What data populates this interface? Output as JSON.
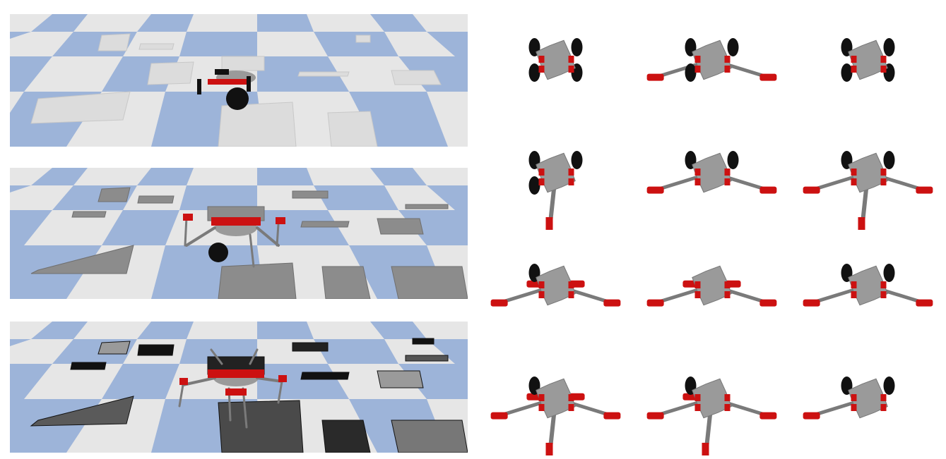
{
  "colors": {
    "floor_light": "#e6e6e6",
    "floor_blue": "#9db4d9",
    "robot_body": "#9a9a9a",
    "actuator_red": "#cc1111",
    "wheel_black": "#111111",
    "limb_gray": "#7a7a7a"
  },
  "scenes": [
    {
      "name": "terrain-stage-1",
      "robot_modules": "wheels-only",
      "obstacle_shade": "#e2e2e2"
    },
    {
      "name": "terrain-stage-2",
      "robot_modules": "wheels-and-legs",
      "obstacle_shade": "#8c8c8c"
    },
    {
      "name": "terrain-stage-3",
      "robot_modules": "legs",
      "obstacle_shade": "#2a2a2a"
    }
  ],
  "morphology_grid": {
    "rows": 4,
    "cols": 3,
    "cells": [
      {
        "legs": 0,
        "wheels": 4,
        "tail": false
      },
      {
        "legs": 2,
        "wheels": 3,
        "tail": false
      },
      {
        "legs": 0,
        "wheels": 4,
        "tail": false
      },
      {
        "legs": 0,
        "wheels": 3,
        "tail": true
      },
      {
        "legs": 2,
        "wheels": 2,
        "tail": false
      },
      {
        "legs": 2,
        "wheels": 2,
        "tail": true
      },
      {
        "legs": 4,
        "wheels": 1,
        "tail": false
      },
      {
        "legs": 4,
        "wheels": 0,
        "tail": false
      },
      {
        "legs": 2,
        "wheels": 2,
        "tail": false
      },
      {
        "legs": 4,
        "wheels": 1,
        "tail": true
      },
      {
        "legs": 3,
        "wheels": 1,
        "tail": true
      },
      {
        "legs": 1,
        "wheels": 2,
        "tail": false
      }
    ]
  }
}
